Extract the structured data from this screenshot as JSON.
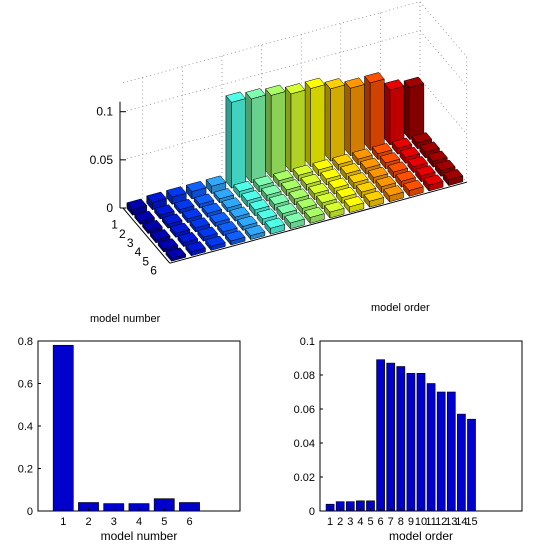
{
  "chart_data": [
    {
      "type": "bar3d",
      "ztick_labels": [
        "0",
        "0.05",
        "0.1"
      ],
      "zlim": [
        0,
        0.1
      ],
      "row_tick_labels": [
        "1",
        "2",
        "3",
        "4",
        "5",
        "6"
      ],
      "xlabel": "model number",
      "ylabel": "model order",
      "rows": 6,
      "cols": 15,
      "values": [
        [
          0.006,
          0.0075,
          0.0075,
          0.0075,
          0.0075,
          0.089,
          0.087,
          0.085,
          0.081,
          0.081,
          0.075,
          0.07,
          0.07,
          0.057,
          0.054
        ],
        [
          0.003,
          0.004,
          0.004,
          0.004,
          0.004,
          0.006,
          0.006,
          0.006,
          0.006,
          0.006,
          0.006,
          0.006,
          0.006,
          0.006,
          0.006
        ],
        [
          0.003,
          0.004,
          0.004,
          0.004,
          0.004,
          0.006,
          0.006,
          0.006,
          0.006,
          0.006,
          0.006,
          0.006,
          0.006,
          0.006,
          0.006
        ],
        [
          0.003,
          0.004,
          0.004,
          0.004,
          0.004,
          0.006,
          0.006,
          0.006,
          0.006,
          0.006,
          0.006,
          0.006,
          0.006,
          0.006,
          0.006
        ],
        [
          0.003,
          0.004,
          0.004,
          0.004,
          0.004,
          0.006,
          0.006,
          0.006,
          0.006,
          0.006,
          0.006,
          0.006,
          0.006,
          0.006,
          0.006
        ],
        [
          0.003,
          0.004,
          0.004,
          0.004,
          0.004,
          0.006,
          0.006,
          0.006,
          0.006,
          0.006,
          0.006,
          0.006,
          0.006,
          0.006,
          0.006
        ]
      ],
      "colormap": [
        "#0000b0",
        "#0018d8",
        "#0038f0",
        "#1060ff",
        "#30a8ff",
        "#50ffe8",
        "#80ffb0",
        "#a8ff68",
        "#d8ff30",
        "#ffff00",
        "#ffd000",
        "#ff9800",
        "#ff5000",
        "#e80000",
        "#a00000"
      ]
    },
    {
      "type": "bar",
      "categories": [
        "1",
        "2",
        "3",
        "4",
        "5",
        "6"
      ],
      "values": [
        0.78,
        0.04,
        0.035,
        0.035,
        0.058,
        0.04
      ],
      "ylim": [
        0,
        0.8
      ],
      "xlim": [
        0,
        8
      ],
      "ytick_labels": [
        "0",
        "0.2",
        "0.4",
        "0.6",
        "0.8"
      ],
      "xlabel": "model number",
      "bar_color": "#0000cc"
    },
    {
      "type": "bar",
      "categories": [
        "1",
        "2",
        "3",
        "4",
        "5",
        "6",
        "7",
        "8",
        "9",
        "10",
        "11",
        "12",
        "13",
        "14",
        "15"
      ],
      "values": [
        0.004,
        0.0055,
        0.0055,
        0.006,
        0.006,
        0.089,
        0.087,
        0.085,
        0.081,
        0.081,
        0.075,
        0.07,
        0.07,
        0.057,
        0.054
      ],
      "ylim": [
        0,
        0.1
      ],
      "xlim": [
        0,
        20
      ],
      "ytick_labels": [
        "0",
        "0.02",
        "0.04",
        "0.06",
        "0.08",
        "0.1"
      ],
      "xlabel": "model order",
      "bar_color": "#0000cc"
    }
  ]
}
